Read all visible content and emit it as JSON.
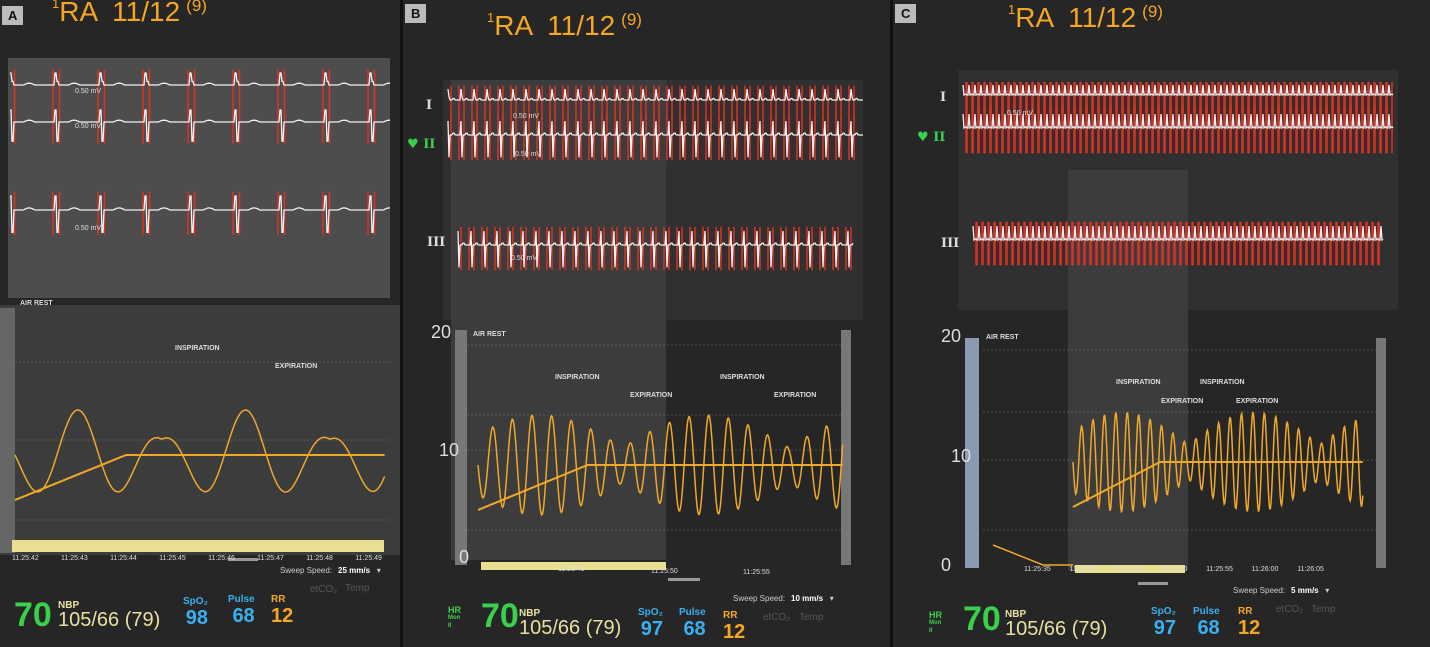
{
  "panels": [
    {
      "id": "A",
      "title": {
        "sup": "1",
        "site": "RA",
        "pressure": "11/12",
        "mean": "(9)"
      },
      "leads": [],
      "mv_label": "0.50 mV",
      "section": "AIR REST",
      "annotations": [
        "INSPIRATION",
        "EXPIRATION"
      ],
      "timestamps": [
        "11:25:42",
        "11:25:43",
        "11:25:44",
        "11:25:45",
        "11:25:46",
        "11:25:47",
        "11:25:48",
        "11:25:49"
      ],
      "sweep_label": "Sweep Speed:",
      "sweep_value": "25 mm/s",
      "vitals": {
        "hr": "70",
        "nbp_label": "NBP",
        "nbp": "105/66 (79)",
        "spo2_label": "SpO₂",
        "spo2": "98",
        "pulse_label": "Pulse",
        "pulse": "68",
        "rr_label": "RR",
        "rr": "12",
        "etco2": "etCO₂",
        "temp": "Temp"
      }
    },
    {
      "id": "B",
      "title": {
        "sup": "1",
        "site": "RA",
        "pressure": "11/12",
        "mean": "(9)"
      },
      "leads": [
        "I",
        "II",
        "III"
      ],
      "mv_label": "0.50 mV",
      "section": "AIR REST",
      "axis": [
        "20",
        "10",
        "0"
      ],
      "annotations": [
        "INSPIRATION",
        "EXPIRATION",
        "INSPIRATION",
        "EXPIRATION"
      ],
      "timestamps": [
        "11:25:45",
        "11:25:50",
        "11:25:55"
      ],
      "sweep_label": "Sweep Speed:",
      "sweep_value": "10 mm/s",
      "vitals": {
        "hr_label": "HR",
        "hr_sub": "Mon",
        "hr_sub2": "II",
        "hr": "70",
        "nbp_label": "NBP",
        "nbp": "105/66 (79)",
        "spo2_label": "SpO₂",
        "spo2": "97",
        "pulse_label": "Pulse",
        "pulse": "68",
        "rr_label": "RR",
        "rr": "12",
        "etco2": "etCO₂",
        "temp": "Temp"
      }
    },
    {
      "id": "C",
      "title": {
        "sup": "1",
        "site": "RA",
        "pressure": "11/12",
        "mean": "(9)"
      },
      "leads": [
        "I",
        "II",
        "III"
      ],
      "mv_label": "0.50 mV",
      "section": "AIR REST",
      "axis": [
        "20",
        "10",
        "0"
      ],
      "annotations": [
        "INSPIRATION",
        "EXPIRATION",
        "INSPIRATION",
        "EXPIRATION"
      ],
      "timestamps": [
        "11:25:35",
        "11:25:40",
        "11:25:45",
        "11:25:50",
        "11:25:55",
        "11:26:00",
        "11:26:05"
      ],
      "sweep_label": "Sweep Speed:",
      "sweep_value": "5 mm/s",
      "vitals": {
        "hr_label": "HR",
        "hr_sub": "Mon",
        "hr_sub2": "II",
        "hr": "70",
        "nbp_label": "NBP",
        "nbp": "105/66 (79)",
        "spo2_label": "SpO₂",
        "spo2": "97",
        "pulse_label": "Pulse",
        "pulse": "68",
        "rr_label": "RR",
        "rr": "12",
        "etco2": "etCO₂",
        "temp": "Temp"
      }
    }
  ],
  "colors": {
    "ecg": "#f2f2f2",
    "pacing": "#e03020",
    "resp": "#f0a828",
    "hr": "#3ad04a",
    "spo2": "#3ab0f0",
    "rr": "#f5a623",
    "pressure": "#f5a623"
  }
}
